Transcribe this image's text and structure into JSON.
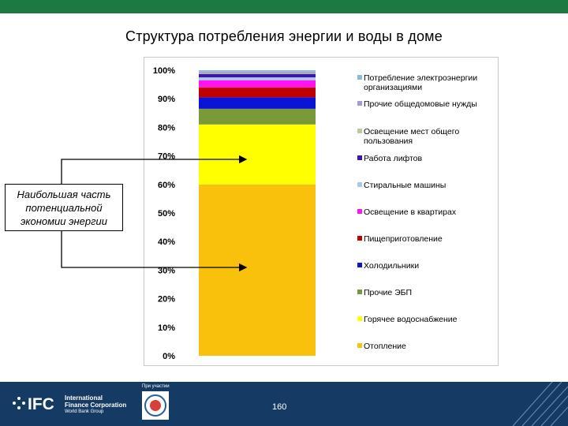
{
  "title": "Структура потребления энергии и воды в доме",
  "note": "Наибольшая часть потенциальной экономии энергии",
  "footer": {
    "org_line1": "International",
    "org_line2": "Finance Corporation",
    "org_line3": "World Bank Group",
    "logo_text": "IFC",
    "partner_label": "При участии",
    "page_number": "160"
  },
  "chart_data": {
    "type": "bar",
    "stacked": true,
    "categories": [
      ""
    ],
    "ylim": [
      0,
      100
    ],
    "yticks": [
      "0%",
      "10%",
      "20%",
      "30%",
      "40%",
      "50%",
      "60%",
      "70%",
      "80%",
      "90%",
      "100%"
    ],
    "legend_position": "right",
    "series": [
      {
        "name": "Отопление",
        "value": 60,
        "color": "#f9c00c"
      },
      {
        "name": "Горячее водоснабжение",
        "value": 21,
        "color": "#ffff00"
      },
      {
        "name": "Прочие ЭБП",
        "value": 5.5,
        "color": "#7a9a3a"
      },
      {
        "name": "Холодильники",
        "value": 4,
        "color": "#0a14d8"
      },
      {
        "name": "Пищеприготовление",
        "value": 3.5,
        "color": "#c00000"
      },
      {
        "name": "Освещение в квартирах",
        "value": 2.5,
        "color": "#ff14f0"
      },
      {
        "name": "Стиральные машины",
        "value": 1,
        "color": "#a9c9e8"
      },
      {
        "name": "Работа лифтов",
        "value": 1.2,
        "color": "#3a17a8"
      },
      {
        "name": "Освещение мест общего пользования",
        "value": 0.3,
        "color": "#b9c9a0"
      },
      {
        "name": "Прочие общедомовые нужды",
        "value": 0.5,
        "color": "#a69ad6"
      },
      {
        "name": "Потребление электроэнергии организациями",
        "value": 0.5,
        "color": "#8fb9d8"
      }
    ]
  }
}
